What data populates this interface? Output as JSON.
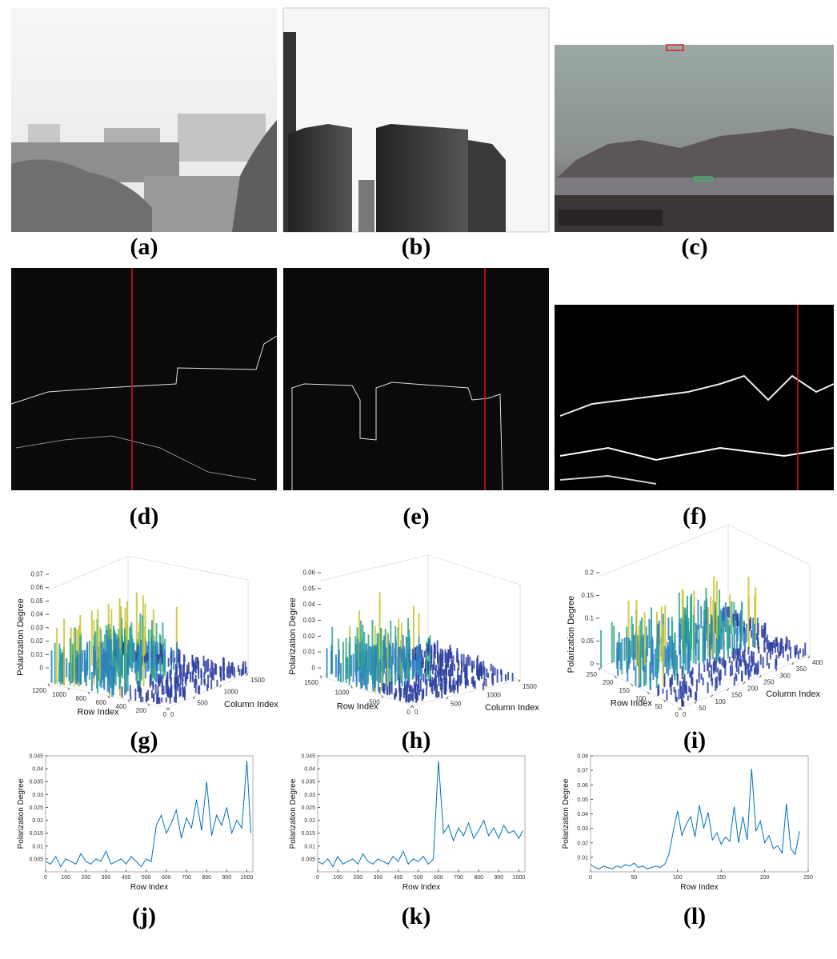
{
  "labels": [
    "(a)",
    "(b)",
    "(c)",
    "(d)",
    "(e)",
    "(f)",
    "(g)",
    "(h)",
    "(i)",
    "(j)",
    "(k)",
    "(l)"
  ],
  "surface_plots": [
    {
      "zlabel": "Polarization Degree",
      "rowlabel": "Row Index",
      "collabel": "Column Index",
      "zticks": [
        0,
        0.01,
        0.02,
        0.03,
        0.04,
        0.05,
        0.06,
        0.07
      ],
      "rowticks": [
        0,
        200,
        400,
        600,
        800,
        1000,
        1200
      ],
      "colticks": [
        0,
        500,
        1000,
        1500
      ]
    },
    {
      "zlabel": "Polarization Degree",
      "rowlabel": "Row Index",
      "collabel": "Column Index",
      "zticks": [
        0,
        0.01,
        0.02,
        0.03,
        0.04,
        0.05,
        0.06
      ],
      "rowticks": [
        0,
        500,
        1000,
        1500
      ],
      "colticks": [
        0,
        500,
        1000,
        1500
      ]
    },
    {
      "zlabel": "Polarization Degree",
      "rowlabel": "Row Index",
      "collabel": "Column Index",
      "zticks": [
        0,
        0.05,
        0.1,
        0.15,
        0.2
      ],
      "rowticks": [
        0,
        50,
        100,
        150,
        200,
        250
      ],
      "colticks": [
        0,
        50,
        100,
        150,
        200,
        250,
        300,
        350,
        400
      ]
    }
  ],
  "chart_data": [
    {
      "type": "line",
      "xlabel": "Row Index",
      "ylabel": "Polarization Degree",
      "x": [
        0,
        25,
        50,
        75,
        100,
        125,
        150,
        175,
        200,
        225,
        250,
        275,
        300,
        325,
        350,
        375,
        400,
        425,
        450,
        475,
        500,
        525,
        550,
        575,
        600,
        625,
        650,
        675,
        700,
        725,
        750,
        775,
        800,
        825,
        850,
        875,
        900,
        925,
        950,
        975,
        1000,
        1020
      ],
      "series": [
        {
          "color": "#0072bd",
          "values": [
            0.004,
            0.003,
            0.006,
            0.002,
            0.005,
            0.004,
            0.003,
            0.007,
            0.004,
            0.003,
            0.005,
            0.004,
            0.008,
            0.003,
            0.004,
            0.005,
            0.003,
            0.006,
            0.004,
            0.002,
            0.005,
            0.004,
            0.018,
            0.022,
            0.015,
            0.019,
            0.024,
            0.013,
            0.021,
            0.017,
            0.028,
            0.016,
            0.035,
            0.014,
            0.022,
            0.018,
            0.025,
            0.015,
            0.02,
            0.017,
            0.043,
            0.015
          ]
        }
      ],
      "xlim": [
        0,
        1030
      ],
      "xticks": [
        0,
        100,
        200,
        300,
        400,
        500,
        600,
        700,
        800,
        900,
        1000
      ],
      "ylim": [
        0,
        0.045
      ],
      "yticks": [
        0.005,
        0.01,
        0.015,
        0.02,
        0.025,
        0.03,
        0.035,
        0.04,
        0.045
      ]
    },
    {
      "type": "line",
      "xlabel": "Row Index",
      "ylabel": "Polarization Degree",
      "x": [
        0,
        25,
        50,
        75,
        100,
        125,
        150,
        175,
        200,
        225,
        250,
        275,
        300,
        325,
        350,
        375,
        400,
        425,
        450,
        475,
        500,
        525,
        550,
        575,
        600,
        625,
        650,
        675,
        700,
        725,
        750,
        775,
        800,
        825,
        850,
        875,
        900,
        925,
        950,
        975,
        1000,
        1020
      ],
      "series": [
        {
          "color": "#0072bd",
          "values": [
            0.004,
            0.003,
            0.005,
            0.002,
            0.006,
            0.003,
            0.004,
            0.005,
            0.003,
            0.007,
            0.004,
            0.003,
            0.005,
            0.004,
            0.003,
            0.006,
            0.004,
            0.008,
            0.003,
            0.005,
            0.004,
            0.006,
            0.003,
            0.005,
            0.043,
            0.015,
            0.018,
            0.012,
            0.017,
            0.014,
            0.019,
            0.013,
            0.016,
            0.02,
            0.014,
            0.017,
            0.013,
            0.018,
            0.015,
            0.016,
            0.013,
            0.016
          ]
        }
      ],
      "xlim": [
        0,
        1030
      ],
      "xticks": [
        0,
        100,
        200,
        300,
        400,
        500,
        600,
        700,
        800,
        900,
        1000
      ],
      "ylim": [
        0,
        0.045
      ],
      "yticks": [
        0.005,
        0.01,
        0.015,
        0.02,
        0.025,
        0.03,
        0.035,
        0.04,
        0.045
      ]
    },
    {
      "type": "line",
      "xlabel": "Row Index",
      "ylabel": "Polarization Degree",
      "x": [
        0,
        5,
        10,
        15,
        20,
        25,
        30,
        35,
        40,
        45,
        50,
        55,
        60,
        65,
        70,
        75,
        80,
        85,
        90,
        95,
        100,
        105,
        110,
        115,
        120,
        125,
        130,
        135,
        140,
        145,
        150,
        155,
        160,
        165,
        170,
        175,
        180,
        185,
        190,
        195,
        200,
        205,
        210,
        215,
        220,
        225,
        230,
        235,
        240
      ],
      "series": [
        {
          "color": "#0072bd",
          "values": [
            0.005,
            0.003,
            0.002,
            0.004,
            0.003,
            0.002,
            0.004,
            0.003,
            0.005,
            0.004,
            0.006,
            0.003,
            0.004,
            0.002,
            0.003,
            0.004,
            0.003,
            0.005,
            0.012,
            0.028,
            0.042,
            0.025,
            0.033,
            0.038,
            0.024,
            0.046,
            0.03,
            0.041,
            0.022,
            0.027,
            0.019,
            0.024,
            0.021,
            0.045,
            0.02,
            0.038,
            0.022,
            0.071,
            0.028,
            0.035,
            0.02,
            0.025,
            0.016,
            0.018,
            0.013,
            0.047,
            0.016,
            0.012,
            0.028
          ]
        }
      ],
      "xlim": [
        0,
        250
      ],
      "xticks": [
        0,
        50,
        100,
        150,
        200,
        250
      ],
      "ylim": [
        0,
        0.08
      ],
      "yticks": [
        0.01,
        0.02,
        0.03,
        0.04,
        0.05,
        0.06,
        0.07,
        0.08
      ]
    }
  ]
}
